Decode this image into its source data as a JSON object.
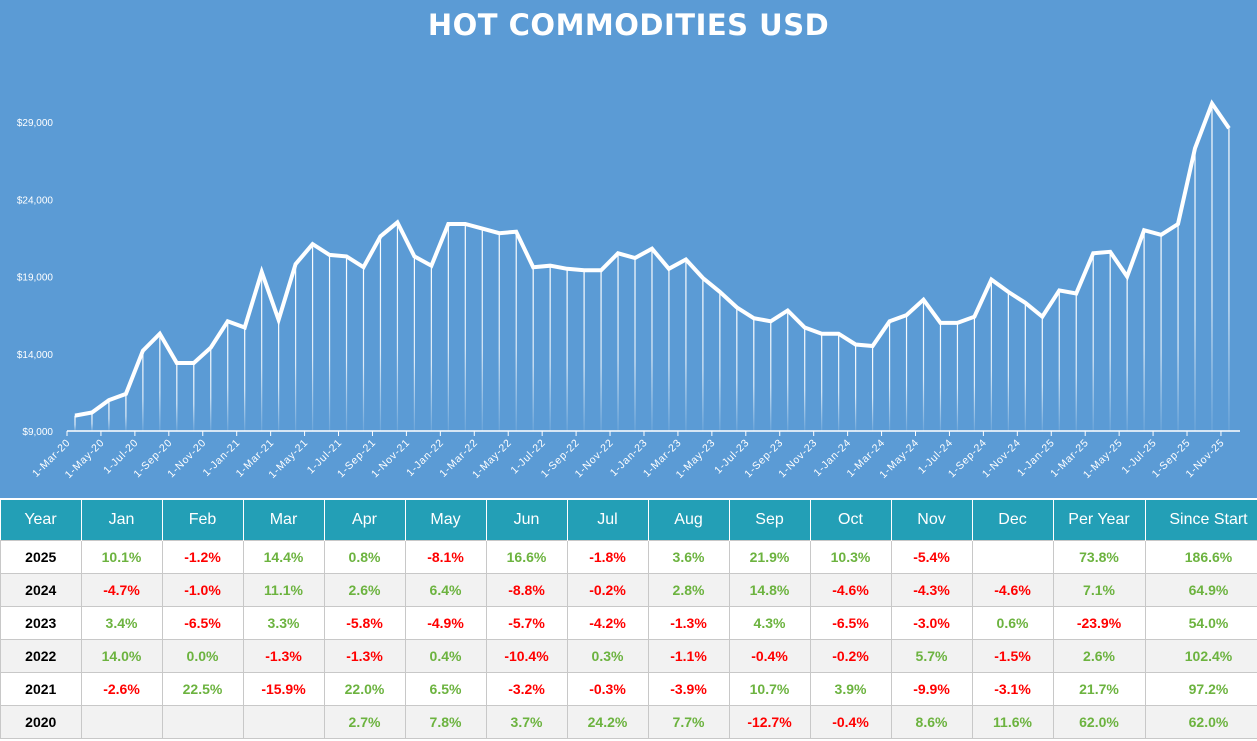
{
  "chart_data": {
    "type": "line",
    "title": "HOT COMMODITIES USD",
    "xlabel": "",
    "ylabel": "",
    "ylim": [
      9000,
      30500
    ],
    "y_ticks": [
      "$9,000",
      "$14,000",
      "$19,000",
      "$24,000",
      "$29,000"
    ],
    "y_tick_values": [
      9000,
      14000,
      19000,
      24000,
      29000
    ],
    "x_tick_labels": [
      "1-Mar-20",
      "1-May-20",
      "1-Jul-20",
      "1-Sep-20",
      "1-Nov-20",
      "1-Jan-21",
      "1-Mar-21",
      "1-May-21",
      "1-Jul-21",
      "1-Sep-21",
      "1-Nov-21",
      "1-Jan-22",
      "1-Mar-22",
      "1-May-22",
      "1-Jul-22",
      "1-Sep-22",
      "1-Nov-22",
      "1-Jan-23",
      "1-Mar-23",
      "1-May-23",
      "1-Jul-23",
      "1-Sep-23",
      "1-Nov-23",
      "1-Jan-24",
      "1-Mar-24",
      "1-May-24",
      "1-Jul-24",
      "1-Sep-24",
      "1-Nov-24",
      "1-Jan-25",
      "1-Mar-25",
      "1-May-25",
      "1-Jul-25",
      "1-Sep-25",
      "1-Nov-25"
    ],
    "x": [
      "Mar-20",
      "Apr-20",
      "May-20",
      "Jun-20",
      "Jul-20",
      "Aug-20",
      "Sep-20",
      "Oct-20",
      "Nov-20",
      "Dec-20",
      "Jan-21",
      "Feb-21",
      "Mar-21",
      "Apr-21",
      "May-21",
      "Jun-21",
      "Jul-21",
      "Aug-21",
      "Sep-21",
      "Oct-21",
      "Nov-21",
      "Dec-21",
      "Jan-22",
      "Feb-22",
      "Mar-22",
      "Apr-22",
      "May-22",
      "Jun-22",
      "Jul-22",
      "Aug-22",
      "Sep-22",
      "Oct-22",
      "Nov-22",
      "Dec-22",
      "Jan-23",
      "Feb-23",
      "Mar-23",
      "Apr-23",
      "May-23",
      "Jun-23",
      "Jul-23",
      "Aug-23",
      "Sep-23",
      "Oct-23",
      "Nov-23",
      "Dec-23",
      "Jan-24",
      "Feb-24",
      "Mar-24",
      "Apr-24",
      "May-24",
      "Jun-24",
      "Jul-24",
      "Aug-24",
      "Sep-24",
      "Oct-24",
      "Nov-24",
      "Dec-24",
      "Jan-25",
      "Feb-25",
      "Mar-25",
      "Apr-25",
      "May-25",
      "Jun-25",
      "Jul-25",
      "Aug-25",
      "Sep-25",
      "Oct-25",
      "Nov-25"
    ],
    "values": [
      10000,
      10200,
      11000,
      11400,
      14200,
      15300,
      13400,
      13400,
      14400,
      16100,
      15700,
      19300,
      16200,
      19800,
      21100,
      20400,
      20300,
      19600,
      21600,
      22500,
      20300,
      19700,
      22400,
      22400,
      22100,
      21800,
      21900,
      19600,
      19700,
      19500,
      19400,
      19400,
      20500,
      20200,
      20800,
      19500,
      20100,
      18900,
      18000,
      17000,
      16300,
      16100,
      16800,
      15700,
      15300,
      15300,
      14600,
      14500,
      16100,
      16500,
      17500,
      16000,
      16000,
      16400,
      18800,
      18000,
      17300,
      16400,
      18100,
      17900,
      20500,
      20600,
      19000,
      22000,
      21700,
      22400,
      27300,
      30200,
      28600
    ],
    "grid": false,
    "legend": "none",
    "colors": {
      "background": "#5b9bd5",
      "line": "#ffffff"
    }
  },
  "table": {
    "headers": [
      "Year",
      "Jan",
      "Feb",
      "Mar",
      "Apr",
      "May",
      "Jun",
      "Jul",
      "Aug",
      "Sep",
      "Oct",
      "Nov",
      "Dec",
      "Per Year",
      "Since Start"
    ],
    "rows": [
      [
        "2025",
        "10.1%",
        "-1.2%",
        "14.4%",
        "0.8%",
        "-8.1%",
        "16.6%",
        "-1.8%",
        "3.6%",
        "21.9%",
        "10.3%",
        "-5.4%",
        "",
        "73.8%",
        "186.6%"
      ],
      [
        "2024",
        "-4.7%",
        "-1.0%",
        "11.1%",
        "2.6%",
        "6.4%",
        "-8.8%",
        "-0.2%",
        "2.8%",
        "14.8%",
        "-4.6%",
        "-4.3%",
        "-4.6%",
        "7.1%",
        "64.9%"
      ],
      [
        "2023",
        "3.4%",
        "-6.5%",
        "3.3%",
        "-5.8%",
        "-4.9%",
        "-5.7%",
        "-4.2%",
        "-1.3%",
        "4.3%",
        "-6.5%",
        "-3.0%",
        "0.6%",
        "-23.9%",
        "54.0%"
      ],
      [
        "2022",
        "14.0%",
        "0.0%",
        "-1.3%",
        "-1.3%",
        "0.4%",
        "-10.4%",
        "0.3%",
        "-1.1%",
        "-0.4%",
        "-0.2%",
        "5.7%",
        "-1.5%",
        "2.6%",
        "102.4%"
      ],
      [
        "2021",
        "-2.6%",
        "22.5%",
        "-15.9%",
        "22.0%",
        "6.5%",
        "-3.2%",
        "-0.3%",
        "-3.9%",
        "10.7%",
        "3.9%",
        "-9.9%",
        "-3.1%",
        "21.7%",
        "97.2%"
      ],
      [
        "2020",
        "",
        "",
        "",
        "2.7%",
        "7.8%",
        "3.7%",
        "24.2%",
        "7.7%",
        "-12.7%",
        "-0.4%",
        "8.6%",
        "11.6%",
        "62.0%",
        "62.0%"
      ]
    ],
    "colors": {
      "header": "#239fb6",
      "positive": "#6cb33f",
      "negative": "#ff0000"
    }
  }
}
